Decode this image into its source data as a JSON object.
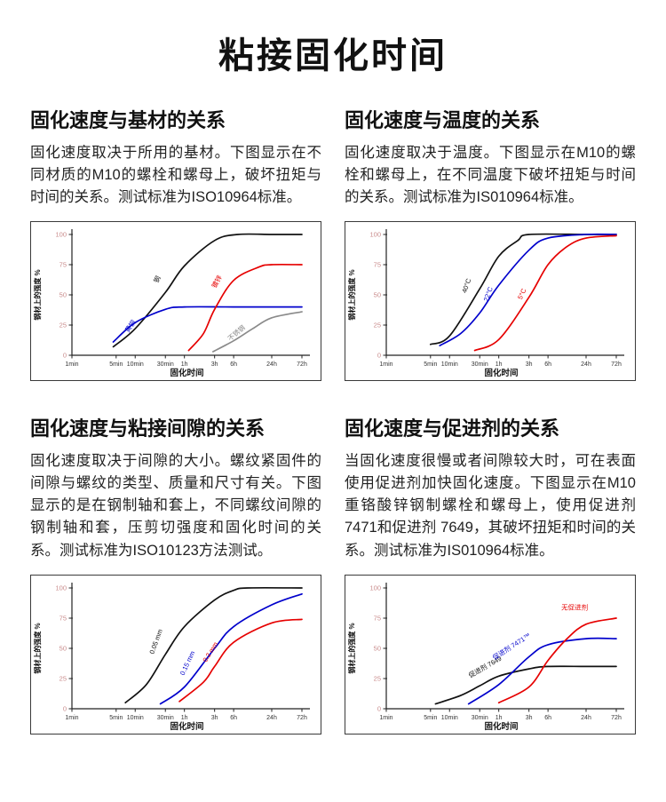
{
  "page": {
    "title": "粘接固化时间",
    "background": "#ffffff"
  },
  "colors": {
    "text": "#1a1a1a",
    "axis": "#222222",
    "series_black": "#111111",
    "series_red": "#e60000",
    "series_blue": "#0000cc",
    "series_gray": "#8a8a8a",
    "y_tick_label": "#c98b8b",
    "x_tick_label": "#333333"
  },
  "sections": [
    {
      "heading": "固化速度与基材的关系",
      "body": "固化速度取决于所用的基材。下图显示在不同材质的M10的螺栓和螺母上，破坏扭矩与时间的关系。测试标准为ISO10964标准。"
    },
    {
      "heading": "固化速度与温度的关系",
      "body": "固化速度取决于温度。下图显示在M10的螺栓和螺母上，在不同温度下破坏扭矩与时间的关系。测试标准为IS010964标准。"
    },
    {
      "heading": "固化速度与粘接间隙的关系",
      "body": "固化速度取决于间隙的大小。螺纹紧固件的间隙与螺纹的类型、质量和尺寸有关。下图显示的是在钢制轴和套上，不同螺纹间隙的钢制轴和套，压剪切强度和固化时间的关系。测试标准为ISO10123方法测试。"
    },
    {
      "heading": "固化速度与促进剂的关系",
      "body": "当固化速度很慢或者间隙较大时，可在表面使用促进剂加快固化速度。下图显示在M10重铬酸锌钢制螺栓和螺母上，使用促进剂 7471和促进剂 7649，其破坏扭矩和时间的关系。测试标准为IS010964标准。"
    }
  ],
  "chart_data": [
    {
      "type": "line",
      "title": "固化速度与基材的关系",
      "xlabel": "固化时间",
      "ylabel": "钢材上的强度 %",
      "x_scale": "log",
      "x_ticks": [
        "1min",
        "5min",
        "10min",
        "30min",
        "1h",
        "3h",
        "6h",
        "24h",
        "72h"
      ],
      "x_tick_minutes": [
        1,
        5,
        10,
        30,
        60,
        180,
        360,
        1440,
        4320
      ],
      "y_ticks": [
        0,
        25,
        50,
        75,
        100
      ],
      "ylim": [
        0,
        100
      ],
      "grid": false,
      "legend": "labels-on-curves",
      "series": [
        {
          "name": "钢",
          "color": "#111111",
          "points": [
            [
              4.5,
              7
            ],
            [
              10,
              22
            ],
            [
              30,
              52
            ],
            [
              60,
              74
            ],
            [
              180,
              95
            ],
            [
              420,
              100
            ],
            [
              1440,
              100
            ],
            [
              4320,
              100
            ]
          ],
          "label_at": [
            24,
            62
          ],
          "label_rotate": -62
        },
        {
          "name": "黄铜",
          "color": "#0000cc",
          "points": [
            [
              4.5,
              11
            ],
            [
              10,
              27
            ],
            [
              30,
              38
            ],
            [
              60,
              40
            ],
            [
              360,
              40
            ],
            [
              4320,
              40
            ]
          ],
          "label_at": [
            9,
            23
          ],
          "label_rotate": -55
        },
        {
          "name": "镀锌",
          "color": "#e60000",
          "points": [
            [
              70,
              4
            ],
            [
              120,
              18
            ],
            [
              180,
              38
            ],
            [
              360,
              62
            ],
            [
              900,
              73
            ],
            [
              1440,
              75
            ],
            [
              4320,
              75
            ]
          ],
          "label_at": [
            210,
            60
          ],
          "label_rotate": -60
        },
        {
          "name": "不锈钢",
          "color": "#8a8a8a",
          "points": [
            [
              170,
              3
            ],
            [
              360,
              12
            ],
            [
              720,
              22
            ],
            [
              1440,
              31
            ],
            [
              4320,
              36
            ]
          ],
          "label_at": [
            420,
            17
          ],
          "label_rotate": -40
        }
      ]
    },
    {
      "type": "line",
      "title": "固化速度与温度的关系",
      "xlabel": "固化时间",
      "ylabel": "钢材上的强度 %",
      "x_scale": "log",
      "x_ticks": [
        "1min",
        "5min",
        "10min",
        "30min",
        "1h",
        "3h",
        "6h",
        "24h",
        "72h"
      ],
      "x_tick_minutes": [
        1,
        5,
        10,
        30,
        60,
        180,
        360,
        1440,
        4320
      ],
      "y_ticks": [
        0,
        25,
        50,
        75,
        100
      ],
      "ylim": [
        0,
        100
      ],
      "grid": false,
      "legend": "labels-on-curves",
      "series": [
        {
          "name": "40°C",
          "color": "#111111",
          "points": [
            [
              5,
              9
            ],
            [
              10,
              16
            ],
            [
              30,
              55
            ],
            [
              60,
              82
            ],
            [
              120,
              95
            ],
            [
              180,
              100
            ],
            [
              1440,
              100
            ],
            [
              4320,
              100
            ]
          ],
          "label_at": [
            20,
            57
          ],
          "label_rotate": -70
        },
        {
          "name": "22°C",
          "color": "#0000cc",
          "points": [
            [
              7,
              8
            ],
            [
              15,
              18
            ],
            [
              30,
              35
            ],
            [
              60,
              58
            ],
            [
              180,
              87
            ],
            [
              360,
              97
            ],
            [
              1440,
              100
            ],
            [
              4320,
              100
            ]
          ],
          "label_at": [
            44,
            50
          ],
          "label_rotate": -70
        },
        {
          "name": "5°C",
          "color": "#e60000",
          "points": [
            [
              25,
              4
            ],
            [
              60,
              13
            ],
            [
              180,
              48
            ],
            [
              360,
              75
            ],
            [
              720,
              90
            ],
            [
              1440,
              97
            ],
            [
              4320,
              99
            ]
          ],
          "label_at": [
            150,
            50
          ],
          "label_rotate": -65
        }
      ]
    },
    {
      "type": "line",
      "title": "固化速度与粘接间隙的关系",
      "xlabel": "固化时间",
      "ylabel": "钢材上的强度 %",
      "x_scale": "log",
      "x_ticks": [
        "1min",
        "5min",
        "10min",
        "30min",
        "1h",
        "3h",
        "6h",
        "24h",
        "72h"
      ],
      "x_tick_minutes": [
        1,
        5,
        10,
        30,
        60,
        180,
        360,
        1440,
        4320
      ],
      "y_ticks": [
        0,
        25,
        50,
        75,
        100
      ],
      "ylim": [
        0,
        100
      ],
      "grid": false,
      "legend": "labels-on-curves",
      "series": [
        {
          "name": "0.05 mm",
          "color": "#111111",
          "points": [
            [
              7,
              5
            ],
            [
              15,
              20
            ],
            [
              30,
              45
            ],
            [
              60,
              68
            ],
            [
              180,
              90
            ],
            [
              360,
              98
            ],
            [
              600,
              100
            ],
            [
              4320,
              100
            ]
          ],
          "label_at": [
            23,
            55
          ],
          "label_rotate": -70
        },
        {
          "name": "0.15 mm",
          "color": "#0000cc",
          "points": [
            [
              25,
              4
            ],
            [
              60,
              18
            ],
            [
              180,
              50
            ],
            [
              360,
              68
            ],
            [
              1440,
              86
            ],
            [
              4320,
              95
            ]
          ],
          "label_at": [
            72,
            37
          ],
          "label_rotate": -65
        },
        {
          "name": "0.2 mm",
          "color": "#e60000",
          "points": [
            [
              50,
              6
            ],
            [
              120,
              22
            ],
            [
              180,
              35
            ],
            [
              360,
              55
            ],
            [
              1440,
              71
            ],
            [
              4320,
              74
            ]
          ],
          "label_at": [
            165,
            46
          ],
          "label_rotate": -58
        }
      ]
    },
    {
      "type": "line",
      "title": "固化速度与促进剂的关系",
      "xlabel": "固化时间",
      "ylabel": "钢材上的强度 %",
      "x_scale": "log",
      "x_ticks": [
        "1min",
        "5min",
        "10min",
        "30min",
        "1h",
        "3h",
        "6h",
        "24h",
        "72h"
      ],
      "x_tick_minutes": [
        1,
        5,
        10,
        30,
        60,
        180,
        360,
        1440,
        4320
      ],
      "y_ticks": [
        0,
        25,
        50,
        75,
        100
      ],
      "ylim": [
        0,
        100
      ],
      "grid": false,
      "legend": "labels-on-curves",
      "series": [
        {
          "name": "促进剂 7649",
          "color": "#111111",
          "points": [
            [
              6,
              4
            ],
            [
              15,
              11
            ],
            [
              30,
              19
            ],
            [
              60,
              27
            ],
            [
              180,
              33
            ],
            [
              360,
              35
            ],
            [
              1440,
              35
            ],
            [
              4320,
              35
            ]
          ],
          "label_at": [
            38,
            33
          ],
          "label_rotate": -30
        },
        {
          "name": "促进剂 7471™",
          "color": "#0000cc",
          "points": [
            [
              20,
              4
            ],
            [
              60,
              20
            ],
            [
              180,
              43
            ],
            [
              360,
              53
            ],
            [
              1440,
              58
            ],
            [
              4320,
              58
            ]
          ],
          "label_at": [
            100,
            50
          ],
          "label_rotate": -33
        },
        {
          "name": "无促进剂",
          "color": "#e60000",
          "points": [
            [
              60,
              5
            ],
            [
              180,
              18
            ],
            [
              360,
              40
            ],
            [
              720,
              58
            ],
            [
              1440,
              70
            ],
            [
              4320,
              75
            ]
          ],
          "label_at": [
            950,
            82
          ],
          "label_rotate": 0
        }
      ]
    }
  ]
}
